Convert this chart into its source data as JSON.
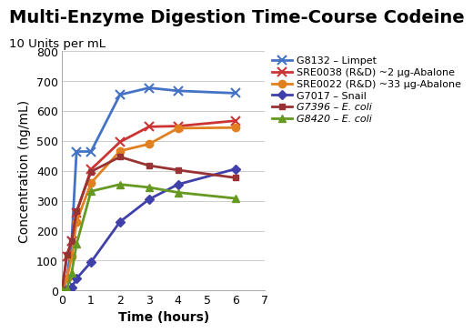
{
  "title": "Multi-Enzyme Digestion Time-Course Codeine",
  "subtitle": "10 Units per mL",
  "xlabel": "Time (hours)",
  "ylabel": "Concentration (ng/mL)",
  "xlim": [
    0,
    7
  ],
  "ylim": [
    0,
    800
  ],
  "yticks": [
    0,
    100,
    200,
    300,
    400,
    500,
    600,
    700,
    800
  ],
  "xticks": [
    0,
    1,
    2,
    3,
    4,
    5,
    6,
    7
  ],
  "series": [
    {
      "label": "G8132 – Limpet",
      "color": "#4472C4",
      "marker": "x",
      "markersize": 7,
      "linewidth": 2.0,
      "x": [
        0,
        0.167,
        0.333,
        0.5,
        1,
        2,
        3,
        4,
        6
      ],
      "y": [
        0,
        35,
        165,
        465,
        465,
        655,
        678,
        668,
        660
      ]
    },
    {
      "label": "SRE0038 (R&D) ~2 μg-Abalone",
      "color": "#CC3333",
      "marker": "x",
      "markersize": 7,
      "linewidth": 2.0,
      "x": [
        0,
        0.167,
        0.333,
        0.5,
        1,
        2,
        3,
        4,
        6
      ],
      "y": [
        0,
        115,
        165,
        260,
        405,
        497,
        548,
        550,
        568
      ]
    },
    {
      "label": "SRE0022 (R&D) ~33 μg-Abalone",
      "color": "#E08020",
      "marker": "o",
      "markersize": 6,
      "linewidth": 2.0,
      "x": [
        0,
        0.167,
        0.333,
        0.5,
        1,
        2,
        3,
        4,
        6
      ],
      "y": [
        0,
        40,
        112,
        230,
        360,
        467,
        490,
        543,
        545
      ]
    },
    {
      "label": "G7017 – Snail",
      "color": "#4040AA",
      "marker": "D",
      "markersize": 5,
      "linewidth": 2.0,
      "x": [
        0,
        0.167,
        0.333,
        0.5,
        1,
        2,
        3,
        4,
        6
      ],
      "y": [
        0,
        5,
        10,
        40,
        95,
        230,
        305,
        355,
        407
      ]
    },
    {
      "label": "G7396 – E. coli",
      "color": "#993333",
      "marker": "s",
      "markersize": 5,
      "linewidth": 2.0,
      "x": [
        0,
        0.167,
        0.333,
        0.5,
        1,
        2,
        3,
        4,
        6
      ],
      "y": [
        0,
        120,
        165,
        265,
        398,
        447,
        418,
        403,
        377
      ]
    },
    {
      "label": "G8420 – E. coli",
      "color": "#669922",
      "marker": "^",
      "markersize": 6,
      "linewidth": 2.0,
      "x": [
        0,
        0.167,
        0.333,
        0.5,
        1,
        2,
        3,
        4,
        6
      ],
      "y": [
        0,
        5,
        60,
        155,
        332,
        355,
        345,
        328,
        308
      ]
    }
  ],
  "background_color": "#FFFFFF",
  "grid_color": "#CCCCCC",
  "title_fontsize": 14,
  "subtitle_fontsize": 9.5,
  "axis_label_fontsize": 10,
  "tick_fontsize": 9,
  "legend_fontsize": 8
}
